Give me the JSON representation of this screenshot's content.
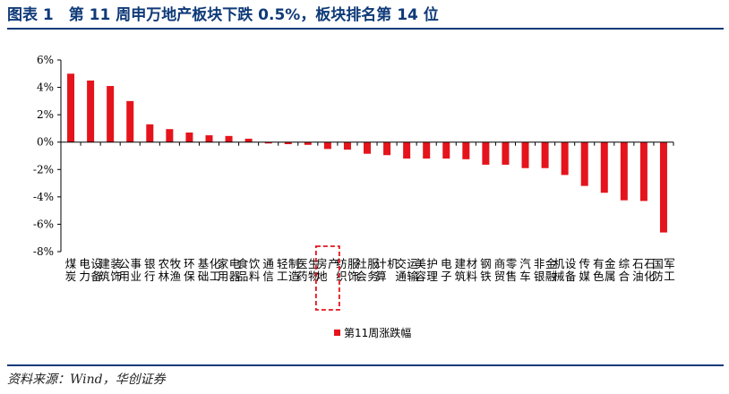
{
  "figure": {
    "title": "图表 1　第 11 周申万地产板块下跌 0.5%，板块排名第 14 位",
    "source": "资料来源：Wind，华创证券"
  },
  "colors": {
    "bar": "#e5141c",
    "title": "#0f3a78",
    "highlight_box": "#e5141c"
  },
  "chart_data": {
    "type": "bar",
    "title": "",
    "xlabel": "",
    "ylabel": "",
    "ylim": [
      -8,
      6
    ],
    "y_ticks": [
      -8,
      -6,
      -4,
      -2,
      0,
      2,
      4,
      6
    ],
    "y_tick_labels": [
      "-8%",
      "-6%",
      "-4%",
      "-2%",
      "0%",
      "2%",
      "4%",
      "6%"
    ],
    "y_unit": "%",
    "legend_position": "bottom",
    "highlight_category": "房地产",
    "categories": [
      "煤炭",
      "电力设备",
      "建筑装饰",
      "公用事业",
      "银行",
      "农林牧渔",
      "环保",
      "基础化工",
      "家用电器",
      "食品饮料",
      "通信",
      "轻工制造",
      "医药生物",
      "房地产",
      "纺织服饰",
      "社会服务",
      "计算机",
      "交通运输",
      "美容护理",
      "电子",
      "建筑材料",
      "钢铁",
      "商贸零售",
      "汽车",
      "非银金融",
      "机械设备",
      "传媒",
      "有色金属",
      "综合",
      "石油石化",
      "国防军工"
    ],
    "series": [
      {
        "name": "第11周涨跌幅",
        "values": [
          5.0,
          4.5,
          4.1,
          3.0,
          1.3,
          0.95,
          0.7,
          0.5,
          0.45,
          0.25,
          -0.1,
          -0.15,
          -0.2,
          -0.5,
          -0.55,
          -0.85,
          -0.95,
          -1.2,
          -1.2,
          -1.2,
          -1.25,
          -1.65,
          -1.65,
          -1.9,
          -1.9,
          -2.4,
          -3.2,
          -3.7,
          -4.25,
          -4.3,
          -6.6
        ]
      }
    ]
  }
}
